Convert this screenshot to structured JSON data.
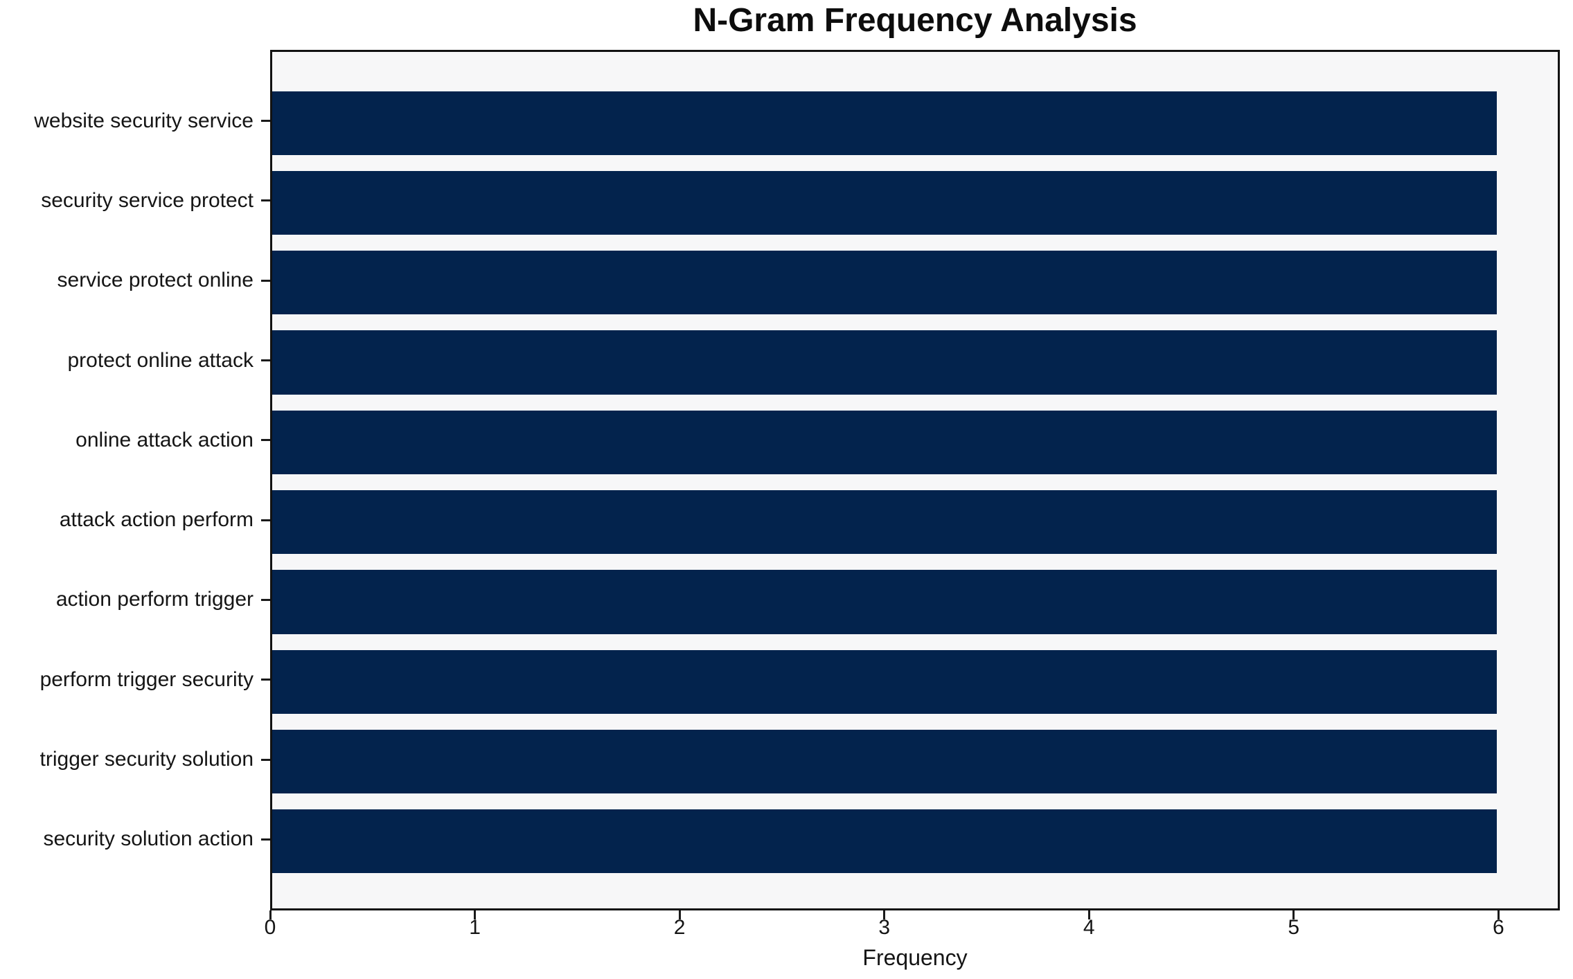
{
  "chart_data": {
    "type": "bar",
    "orientation": "horizontal",
    "title": "N-Gram Frequency Analysis",
    "xlabel": "Frequency",
    "categories": [
      "website security service",
      "security service protect",
      "service protect online",
      "protect online attack",
      "online attack action",
      "attack action perform",
      "action perform trigger",
      "perform trigger security",
      "trigger security solution",
      "security solution action"
    ],
    "values": [
      6,
      6,
      6,
      6,
      6,
      6,
      6,
      6,
      6,
      6
    ],
    "xlim": [
      0,
      6.3
    ],
    "xticks": [
      0,
      1,
      2,
      3,
      4,
      5,
      6
    ],
    "grid": false,
    "legend": null,
    "bar_color": "#03234d",
    "plot_bg": "#f7f7f8",
    "figure_bg": "#ffffff",
    "spine_color": "#121212",
    "text_color": "#151515"
  }
}
